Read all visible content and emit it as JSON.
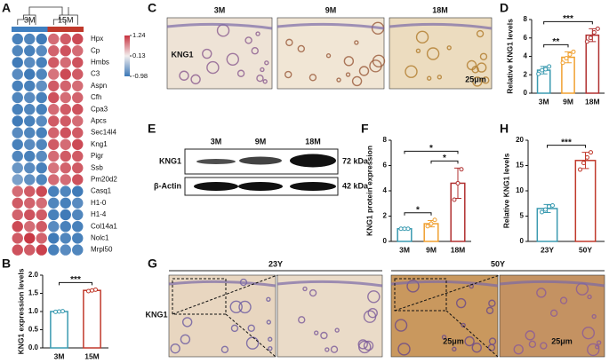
{
  "panels": [
    "A",
    "B",
    "C",
    "D",
    "E",
    "F",
    "G",
    "H"
  ],
  "chart_data": [
    {
      "type": "heatmap",
      "groups": [
        "3M",
        "15M"
      ],
      "group_colors": [
        "#3f7fc0",
        "#c0392b"
      ],
      "rows": [
        "Hpx",
        "Cp",
        "Hmbs",
        "C3",
        "Aspn",
        "Cfh",
        "Cpa3",
        "Apcs",
        "Sec14l4",
        "Kng1",
        "Pigr",
        "Ssb",
        "Pm20d2",
        "Casq1",
        "H1-0",
        "H1-4",
        "Col14a1",
        "Nolc1",
        "Mrpl50"
      ],
      "values": [
        [
          -0.9,
          -0.85,
          -0.95,
          0.9,
          1.0,
          1.1
        ],
        [
          -0.85,
          -0.9,
          -0.8,
          0.95,
          1.05,
          0.9
        ],
        [
          -0.95,
          -0.8,
          -0.9,
          1.0,
          0.9,
          1.05
        ],
        [
          -0.8,
          -0.95,
          -0.85,
          0.85,
          1.1,
          1.0
        ],
        [
          -0.9,
          -0.9,
          -0.75,
          1.0,
          0.95,
          0.9
        ],
        [
          -0.85,
          -0.8,
          -0.9,
          1.05,
          0.9,
          0.95
        ],
        [
          -0.9,
          -0.85,
          -0.9,
          0.9,
          1.0,
          1.05
        ],
        [
          -0.95,
          -0.9,
          -0.8,
          1.0,
          1.0,
          0.9
        ],
        [
          -0.8,
          -0.85,
          -0.9,
          0.95,
          1.05,
          1.0
        ],
        [
          -0.9,
          -0.8,
          -0.85,
          1.0,
          0.9,
          1.1
        ],
        [
          -0.85,
          -0.9,
          -0.8,
          0.9,
          1.0,
          1.0
        ],
        [
          -0.7,
          -0.8,
          -0.9,
          0.85,
          0.95,
          1.0
        ],
        [
          -0.6,
          -0.75,
          -0.85,
          0.9,
          0.9,
          1.05
        ],
        [
          0.9,
          1.0,
          1.1,
          -0.9,
          -0.85,
          -0.95
        ],
        [
          1.0,
          0.95,
          0.9,
          -0.85,
          -0.9,
          -0.8
        ],
        [
          0.95,
          1.05,
          1.0,
          -0.9,
          -0.95,
          -0.85
        ],
        [
          1.1,
          0.9,
          1.0,
          -0.8,
          -0.9,
          -0.9
        ],
        [
          1.0,
          1.2,
          0.95,
          -0.95,
          -0.85,
          -0.9
        ],
        [
          1.05,
          1.0,
          1.15,
          -0.9,
          -0.8,
          -0.85
        ]
      ],
      "zlim": [
        -0.98,
        1.24
      ],
      "zticks": [
        1.24,
        0.13,
        -0.98
      ],
      "colors": [
        "#3b78b7",
        "#f2eeee",
        "#c7323f"
      ]
    },
    {
      "type": "bar",
      "ylabel": "KNG1 expression levels",
      "categories": [
        "3M",
        "15M"
      ],
      "values": [
        1.0,
        1.58
      ],
      "errors": [
        0.02,
        0.02
      ],
      "points": [
        [
          0.99,
          1.0,
          1.01
        ],
        [
          1.56,
          1.58,
          1.6
        ]
      ],
      "colors": [
        "#3a9ab0",
        "#c0392b"
      ],
      "ylim": [
        0,
        2.0
      ],
      "yticks": [
        {
          "value": 0,
          "label": "0.0"
        },
        {
          "value": 0.5,
          "label": "0.5"
        },
        {
          "value": 1.0,
          "label": "1.0"
        },
        {
          "value": 1.5,
          "label": "1.5"
        },
        {
          "value": 2.0,
          "label": "2.0"
        }
      ],
      "annotations": [
        {
          "text": "***",
          "between": [
            "3M",
            "15M"
          ]
        }
      ]
    },
    {
      "type": "bar",
      "ylabel": "Relative KNG1 levels",
      "categories": [
        "3M",
        "9M",
        "18M"
      ],
      "values": [
        2.5,
        3.9,
        6.3
      ],
      "errors": [
        0.4,
        0.6,
        0.7
      ],
      "points": [
        [
          2.1,
          2.5,
          2.6,
          2.9
        ],
        [
          3.3,
          3.8,
          4.2,
          4.5
        ],
        [
          5.6,
          6.0,
          6.6,
          7.0
        ]
      ],
      "colors": [
        "#3a9ab0",
        "#f0a030",
        "#b03030"
      ],
      "ylim": [
        0,
        8
      ],
      "yticks": [
        0,
        2,
        4,
        6,
        8
      ],
      "annotations": [
        {
          "text": "**",
          "between": [
            "3M",
            "9M"
          ]
        },
        {
          "text": "***",
          "between": [
            "3M",
            "18M"
          ]
        }
      ]
    },
    {
      "type": "bar",
      "ylabel": "KNG1 protein expression",
      "categories": [
        "3M",
        "9M",
        "18M"
      ],
      "values": [
        1.0,
        1.4,
        4.6
      ],
      "errors": [
        0.05,
        0.25,
        1.2
      ],
      "points": [
        [
          1.0,
          1.0,
          1.0
        ],
        [
          1.2,
          1.4,
          1.7
        ],
        [
          3.3,
          4.6,
          5.7
        ]
      ],
      "colors": [
        "#3a9ab0",
        "#f0a030",
        "#b03030"
      ],
      "ylim": [
        0,
        8
      ],
      "yticks": [
        0,
        2,
        4,
        6,
        8
      ],
      "annotations": [
        {
          "text": "*",
          "between": [
            "3M",
            "9M"
          ]
        },
        {
          "text": "*",
          "between": [
            "9M",
            "18M"
          ]
        },
        {
          "text": "*",
          "between": [
            "3M",
            "18M"
          ]
        }
      ]
    },
    {
      "type": "bar",
      "ylabel": "Relative KNG1 levels",
      "categories": [
        "23Y",
        "50Y"
      ],
      "values": [
        6.5,
        16
      ],
      "errors": [
        0.8,
        1.6
      ],
      "points": [
        [
          5.8,
          6.3,
          6.9,
          7.1
        ],
        [
          14.2,
          15.5,
          16.6,
          17.6
        ]
      ],
      "colors": [
        "#3a9ab0",
        "#c0392b"
      ],
      "ylim": [
        0,
        20
      ],
      "yticks": [
        0,
        5,
        10,
        15,
        20
      ],
      "annotations": [
        {
          "text": "***",
          "between": [
            "23Y",
            "50Y"
          ]
        }
      ]
    }
  ],
  "panel_c": {
    "columns": [
      "3M",
      "9M",
      "18M"
    ],
    "row_label": "KNG1",
    "scale_bar": "25μm"
  },
  "panel_e": {
    "columns": [
      "3M",
      "9M",
      "18M"
    ],
    "rows": [
      {
        "name": "KNG1",
        "size": "72 kDa"
      },
      {
        "name": "β-Actin",
        "size": "42 kDa"
      }
    ]
  },
  "panel_g": {
    "groups": [
      "23Y",
      "50Y"
    ],
    "row_label": "KNG1",
    "scale_bars": [
      "25μm",
      "25μm"
    ]
  }
}
